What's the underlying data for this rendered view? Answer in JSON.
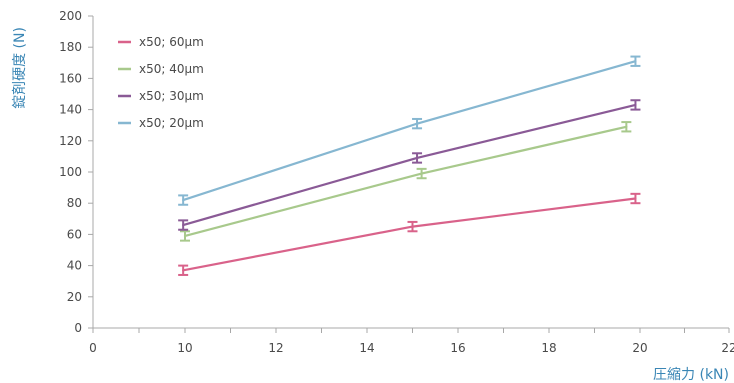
{
  "chart_data": {
    "type": "line",
    "title": "",
    "xlabel": "圧縮力 (kN)",
    "ylabel": "錠剤硬度 (N)",
    "xlim": [
      0,
      22
    ],
    "ylim": [
      0,
      200
    ],
    "x_ticks": [
      "0",
      "10",
      "12",
      "14",
      "16",
      "18",
      "20",
      "22"
    ],
    "y_ticks": [
      "0",
      "20",
      "40",
      "60",
      "80",
      "100",
      "120",
      "140",
      "160",
      "180",
      "200"
    ],
    "grid": false,
    "legend_position": "top-left",
    "series": [
      {
        "name": "x50; 60µm",
        "color": "#d9628a",
        "points": [
          {
            "x": 9.8,
            "y": 37,
            "err": 3
          },
          {
            "x": 15.0,
            "y": 65,
            "err": 3
          },
          {
            "x": 19.9,
            "y": 83,
            "err": 3
          }
        ]
      },
      {
        "name": "x50; 40µm",
        "color": "#a8c98c",
        "points": [
          {
            "x": 10.0,
            "y": 59,
            "err": 3
          },
          {
            "x": 15.2,
            "y": 99,
            "err": 3
          },
          {
            "x": 19.7,
            "y": 129,
            "err": 3
          }
        ]
      },
      {
        "name": "x50; 30µm",
        "color": "#8a5a96",
        "points": [
          {
            "x": 9.8,
            "y": 66,
            "err": 3
          },
          {
            "x": 15.1,
            "y": 109,
            "err": 3
          },
          {
            "x": 19.9,
            "y": 143,
            "err": 3
          }
        ]
      },
      {
        "name": "x50; 20µm",
        "color": "#86b7d1",
        "points": [
          {
            "x": 9.8,
            "y": 82,
            "err": 3
          },
          {
            "x": 15.1,
            "y": 131,
            "err": 3
          },
          {
            "x": 19.9,
            "y": 171,
            "err": 3
          }
        ]
      }
    ]
  },
  "style": {
    "axis_color": "#a8a8a8",
    "label_color": "#3a86b5",
    "tick_text_color": "#4a4a4a"
  }
}
